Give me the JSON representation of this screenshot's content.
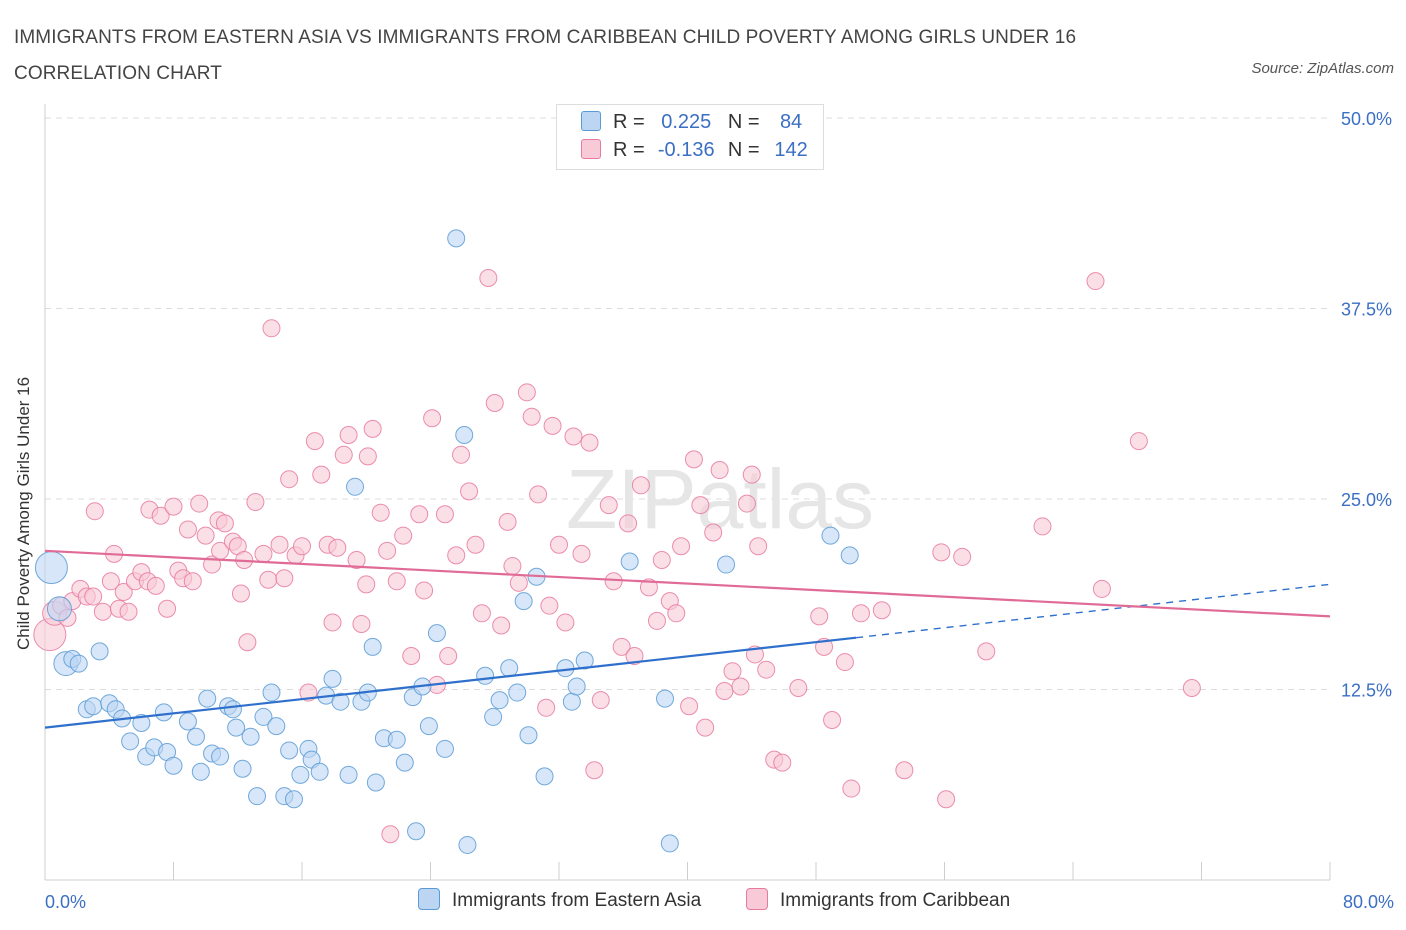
{
  "title": "IMMIGRANTS FROM EASTERN ASIA VS IMMIGRANTS FROM CARIBBEAN CHILD POVERTY AMONG GIRLS UNDER 16 CORRELATION CHART",
  "source": "Source: ZipAtlas.com",
  "watermark": "ZIPatlas",
  "colors": {
    "blue": "#5b9bd5",
    "blue_fill": "#aac9ee",
    "blue_line": "#2f70cc",
    "pink": "#e87aa0",
    "pink_fill": "#f5b8cb",
    "pink_line": "#e06b96",
    "axis_text": "#3b6fc4",
    "grid": "#dddddd"
  },
  "legend": {
    "r_label": "R =",
    "n_label": "N =",
    "series": [
      {
        "r": "0.225",
        "n": "84"
      },
      {
        "r": "-0.136",
        "n": "142"
      }
    ]
  },
  "chart_data": {
    "type": "scatter",
    "xlabel": "",
    "ylabel": "Child Poverty Among Girls Under 16",
    "xlim": [
      0,
      80
    ],
    "ylim": [
      0,
      50
    ],
    "x_tick_labels": [
      "0.0%",
      "80.0%"
    ],
    "y_ticks": [
      12.5,
      25.0,
      37.5,
      50.0
    ],
    "y_tick_labels": [
      "12.5%",
      "25.0%",
      "37.5%",
      "50.0%"
    ],
    "grid": "horizontal-dashed",
    "legend_position": "bottom",
    "series": [
      {
        "name": "Immigrants from Eastern Asia",
        "color": "#5b9bd5",
        "trend": {
          "x0": 0,
          "y0": 10.0,
          "x1": 50.5,
          "y1": 15.9,
          "dash_to_x": 80,
          "dash_to_y": 19.4
        },
        "points": [
          [
            0.4,
            20.5,
            3
          ],
          [
            0.9,
            17.8,
            2
          ],
          [
            1.3,
            14.2,
            2
          ],
          [
            1.7,
            14.5,
            1
          ],
          [
            2.1,
            14.2,
            1
          ],
          [
            3.4,
            15.0,
            1
          ],
          [
            2.6,
            11.2,
            1
          ],
          [
            3.0,
            11.4,
            1
          ],
          [
            4.0,
            11.6,
            1
          ],
          [
            4.4,
            11.2,
            1
          ],
          [
            4.8,
            10.6,
            1
          ],
          [
            5.3,
            9.1,
            1
          ],
          [
            6.0,
            10.3,
            1
          ],
          [
            6.3,
            8.1,
            1
          ],
          [
            6.8,
            8.7,
            1
          ],
          [
            7.4,
            11.0,
            1
          ],
          [
            7.6,
            8.4,
            1
          ],
          [
            8.0,
            7.5,
            1
          ],
          [
            8.9,
            10.4,
            1
          ],
          [
            9.4,
            9.4,
            1
          ],
          [
            9.7,
            7.1,
            1
          ],
          [
            10.1,
            11.9,
            1
          ],
          [
            10.4,
            8.3,
            1
          ],
          [
            10.9,
            8.1,
            1
          ],
          [
            11.4,
            11.4,
            1
          ],
          [
            11.7,
            11.2,
            1
          ],
          [
            11.9,
            10.0,
            1
          ],
          [
            12.3,
            7.3,
            1
          ],
          [
            12.8,
            9.4,
            1
          ],
          [
            13.2,
            5.5,
            1
          ],
          [
            13.6,
            10.7,
            1
          ],
          [
            14.1,
            12.3,
            1
          ],
          [
            14.4,
            10.1,
            1
          ],
          [
            14.9,
            5.5,
            1
          ],
          [
            15.2,
            8.5,
            1
          ],
          [
            15.5,
            5.3,
            1
          ],
          [
            15.9,
            6.9,
            1
          ],
          [
            16.4,
            8.6,
            1
          ],
          [
            16.6,
            7.9,
            1
          ],
          [
            17.1,
            7.1,
            1
          ],
          [
            17.5,
            12.1,
            1
          ],
          [
            17.9,
            13.2,
            1
          ],
          [
            18.4,
            11.7,
            1
          ],
          [
            18.9,
            6.9,
            1
          ],
          [
            19.3,
            25.8,
            1
          ],
          [
            19.7,
            11.7,
            1
          ],
          [
            20.1,
            12.3,
            1
          ],
          [
            20.4,
            15.3,
            1
          ],
          [
            20.6,
            6.4,
            1
          ],
          [
            21.1,
            9.3,
            1
          ],
          [
            21.9,
            9.2,
            1
          ],
          [
            22.4,
            7.7,
            1
          ],
          [
            22.9,
            12.0,
            1
          ],
          [
            23.1,
            3.2,
            1
          ],
          [
            23.5,
            12.7,
            1
          ],
          [
            23.9,
            10.1,
            1
          ],
          [
            24.4,
            16.2,
            1
          ],
          [
            24.9,
            8.6,
            1
          ],
          [
            25.6,
            42.1,
            1
          ],
          [
            26.1,
            29.2,
            1
          ],
          [
            26.3,
            2.3,
            1
          ],
          [
            27.4,
            13.4,
            1
          ],
          [
            27.9,
            10.7,
            1
          ],
          [
            28.3,
            11.8,
            1
          ],
          [
            28.9,
            13.9,
            1
          ],
          [
            29.4,
            12.3,
            1
          ],
          [
            29.8,
            18.3,
            1
          ],
          [
            30.1,
            9.5,
            1
          ],
          [
            30.6,
            19.9,
            1
          ],
          [
            31.1,
            6.8,
            1
          ],
          [
            32.4,
            13.9,
            1
          ],
          [
            32.8,
            11.7,
            1
          ],
          [
            33.1,
            12.7,
            1
          ],
          [
            33.6,
            14.4,
            1
          ],
          [
            36.4,
            20.9,
            1
          ],
          [
            38.6,
            11.9,
            1
          ],
          [
            38.9,
            2.4,
            1
          ],
          [
            42.4,
            20.7,
            1
          ],
          [
            48.9,
            22.6,
            1
          ],
          [
            50.1,
            21.3,
            1
          ]
        ]
      },
      {
        "name": "Immigrants from Caribbean",
        "color": "#e87aa0",
        "trend": {
          "x0": 0,
          "y0": 21.6,
          "x1": 80,
          "y1": 17.3
        },
        "points": [
          [
            0.3,
            16.1,
            3
          ],
          [
            0.6,
            17.5,
            2
          ],
          [
            1.0,
            18.0,
            1
          ],
          [
            1.4,
            17.2,
            1
          ],
          [
            1.7,
            18.3,
            1
          ],
          [
            2.2,
            19.1,
            1
          ],
          [
            2.6,
            18.6,
            1
          ],
          [
            3.0,
            18.6,
            1
          ],
          [
            3.1,
            24.2,
            1
          ],
          [
            3.6,
            17.6,
            1
          ],
          [
            4.1,
            19.6,
            1
          ],
          [
            4.3,
            21.4,
            1
          ],
          [
            4.6,
            17.8,
            1
          ],
          [
            4.9,
            18.9,
            1
          ],
          [
            5.2,
            17.6,
            1
          ],
          [
            5.6,
            19.6,
            1
          ],
          [
            6.0,
            20.2,
            1
          ],
          [
            6.4,
            19.6,
            1
          ],
          [
            6.5,
            24.3,
            1
          ],
          [
            6.9,
            19.3,
            1
          ],
          [
            7.2,
            23.9,
            1
          ],
          [
            7.6,
            17.8,
            1
          ],
          [
            8.0,
            24.5,
            1
          ],
          [
            8.3,
            20.3,
            1
          ],
          [
            8.6,
            19.8,
            1
          ],
          [
            8.9,
            23.0,
            1
          ],
          [
            9.2,
            19.6,
            1
          ],
          [
            9.6,
            24.7,
            1
          ],
          [
            10.0,
            22.6,
            1
          ],
          [
            10.4,
            20.7,
            1
          ],
          [
            10.8,
            23.6,
            1
          ],
          [
            10.9,
            21.6,
            1
          ],
          [
            11.2,
            23.4,
            1
          ],
          [
            11.7,
            22.2,
            1
          ],
          [
            12.0,
            21.9,
            1
          ],
          [
            12.4,
            21.0,
            1
          ],
          [
            12.6,
            15.6,
            1
          ],
          [
            13.1,
            24.8,
            1
          ],
          [
            13.6,
            21.4,
            1
          ],
          [
            13.9,
            19.7,
            1
          ],
          [
            14.1,
            36.2,
            1
          ],
          [
            14.6,
            22.0,
            1
          ],
          [
            14.9,
            19.8,
            1
          ],
          [
            15.2,
            26.3,
            1
          ],
          [
            15.6,
            21.3,
            1
          ],
          [
            16.0,
            21.9,
            1
          ],
          [
            16.4,
            12.3,
            1
          ],
          [
            16.8,
            28.8,
            1
          ],
          [
            17.2,
            26.6,
            1
          ],
          [
            17.6,
            22.0,
            1
          ],
          [
            17.9,
            16.9,
            1
          ],
          [
            18.2,
            21.8,
            1
          ],
          [
            18.6,
            27.9,
            1
          ],
          [
            18.9,
            29.2,
            1
          ],
          [
            19.4,
            21.0,
            1
          ],
          [
            19.7,
            16.8,
            1
          ],
          [
            20.1,
            27.8,
            1
          ],
          [
            20.4,
            29.6,
            1
          ],
          [
            20.9,
            24.1,
            1
          ],
          [
            21.3,
            21.6,
            1
          ],
          [
            21.5,
            3.0,
            1
          ],
          [
            21.9,
            19.6,
            1
          ],
          [
            22.3,
            22.6,
            1
          ],
          [
            22.8,
            14.7,
            1
          ],
          [
            23.3,
            24.0,
            1
          ],
          [
            23.6,
            19.0,
            1
          ],
          [
            24.1,
            30.3,
            1
          ],
          [
            24.4,
            12.8,
            1
          ],
          [
            24.9,
            24.0,
            1
          ],
          [
            25.1,
            14.7,
            1
          ],
          [
            25.6,
            21.3,
            1
          ],
          [
            25.9,
            27.9,
            1
          ],
          [
            26.4,
            25.5,
            1
          ],
          [
            26.8,
            22.0,
            1
          ],
          [
            27.2,
            17.5,
            1
          ],
          [
            27.6,
            39.5,
            1
          ],
          [
            28.0,
            31.3,
            1
          ],
          [
            28.4,
            16.7,
            1
          ],
          [
            28.8,
            23.5,
            1
          ],
          [
            29.1,
            20.6,
            1
          ],
          [
            29.5,
            19.5,
            1
          ],
          [
            30.0,
            32.0,
            1
          ],
          [
            30.3,
            30.4,
            1
          ],
          [
            30.7,
            25.3,
            1
          ],
          [
            31.2,
            11.3,
            1
          ],
          [
            31.6,
            29.8,
            1
          ],
          [
            32.0,
            22.0,
            1
          ],
          [
            32.4,
            16.9,
            1
          ],
          [
            32.9,
            29.1,
            1
          ],
          [
            33.4,
            21.4,
            1
          ],
          [
            33.9,
            28.7,
            1
          ],
          [
            34.2,
            7.2,
            1
          ],
          [
            34.6,
            11.8,
            1
          ],
          [
            35.1,
            24.6,
            1
          ],
          [
            35.4,
            19.6,
            1
          ],
          [
            35.9,
            15.3,
            1
          ],
          [
            36.3,
            23.4,
            1
          ],
          [
            36.7,
            14.7,
            1
          ],
          [
            37.1,
            25.9,
            1
          ],
          [
            37.6,
            19.2,
            1
          ],
          [
            38.1,
            17.0,
            1
          ],
          [
            38.4,
            21.0,
            1
          ],
          [
            38.9,
            18.3,
            1
          ],
          [
            39.3,
            17.5,
            1
          ],
          [
            39.6,
            21.9,
            1
          ],
          [
            40.1,
            11.4,
            1
          ],
          [
            40.4,
            27.6,
            1
          ],
          [
            40.8,
            24.6,
            1
          ],
          [
            41.1,
            10.0,
            1
          ],
          [
            41.6,
            22.8,
            1
          ],
          [
            42.0,
            26.9,
            1
          ],
          [
            42.3,
            12.4,
            1
          ],
          [
            42.8,
            13.7,
            1
          ],
          [
            43.3,
            12.7,
            1
          ],
          [
            43.7,
            24.7,
            1
          ],
          [
            44.0,
            26.6,
            1
          ],
          [
            44.4,
            21.9,
            1
          ],
          [
            44.9,
            13.8,
            1
          ],
          [
            45.4,
            7.9,
            1
          ],
          [
            45.9,
            7.7,
            1
          ],
          [
            46.9,
            12.6,
            1
          ],
          [
            48.2,
            17.3,
            1
          ],
          [
            48.5,
            15.3,
            1
          ],
          [
            49.0,
            10.5,
            1
          ],
          [
            49.8,
            14.3,
            1
          ],
          [
            50.2,
            6.0,
            1
          ],
          [
            50.8,
            17.5,
            1
          ],
          [
            52.1,
            17.7,
            1
          ],
          [
            53.5,
            7.2,
            1
          ],
          [
            55.8,
            21.5,
            1
          ],
          [
            56.1,
            5.3,
            1
          ],
          [
            57.1,
            21.2,
            1
          ],
          [
            58.6,
            15.0,
            1
          ],
          [
            62.1,
            23.2,
            1
          ],
          [
            65.4,
            39.3,
            1
          ],
          [
            65.8,
            19.1,
            1
          ],
          [
            68.1,
            28.8,
            1
          ],
          [
            71.4,
            12.6,
            1
          ],
          [
            44.2,
            14.8,
            1
          ],
          [
            31.4,
            18.0,
            1
          ],
          [
            20.0,
            19.4,
            1
          ],
          [
            12.2,
            18.8,
            1
          ]
        ]
      }
    ]
  },
  "bottom_legend": {
    "items": [
      "Immigrants from Eastern Asia",
      "Immigrants from Caribbean"
    ]
  }
}
